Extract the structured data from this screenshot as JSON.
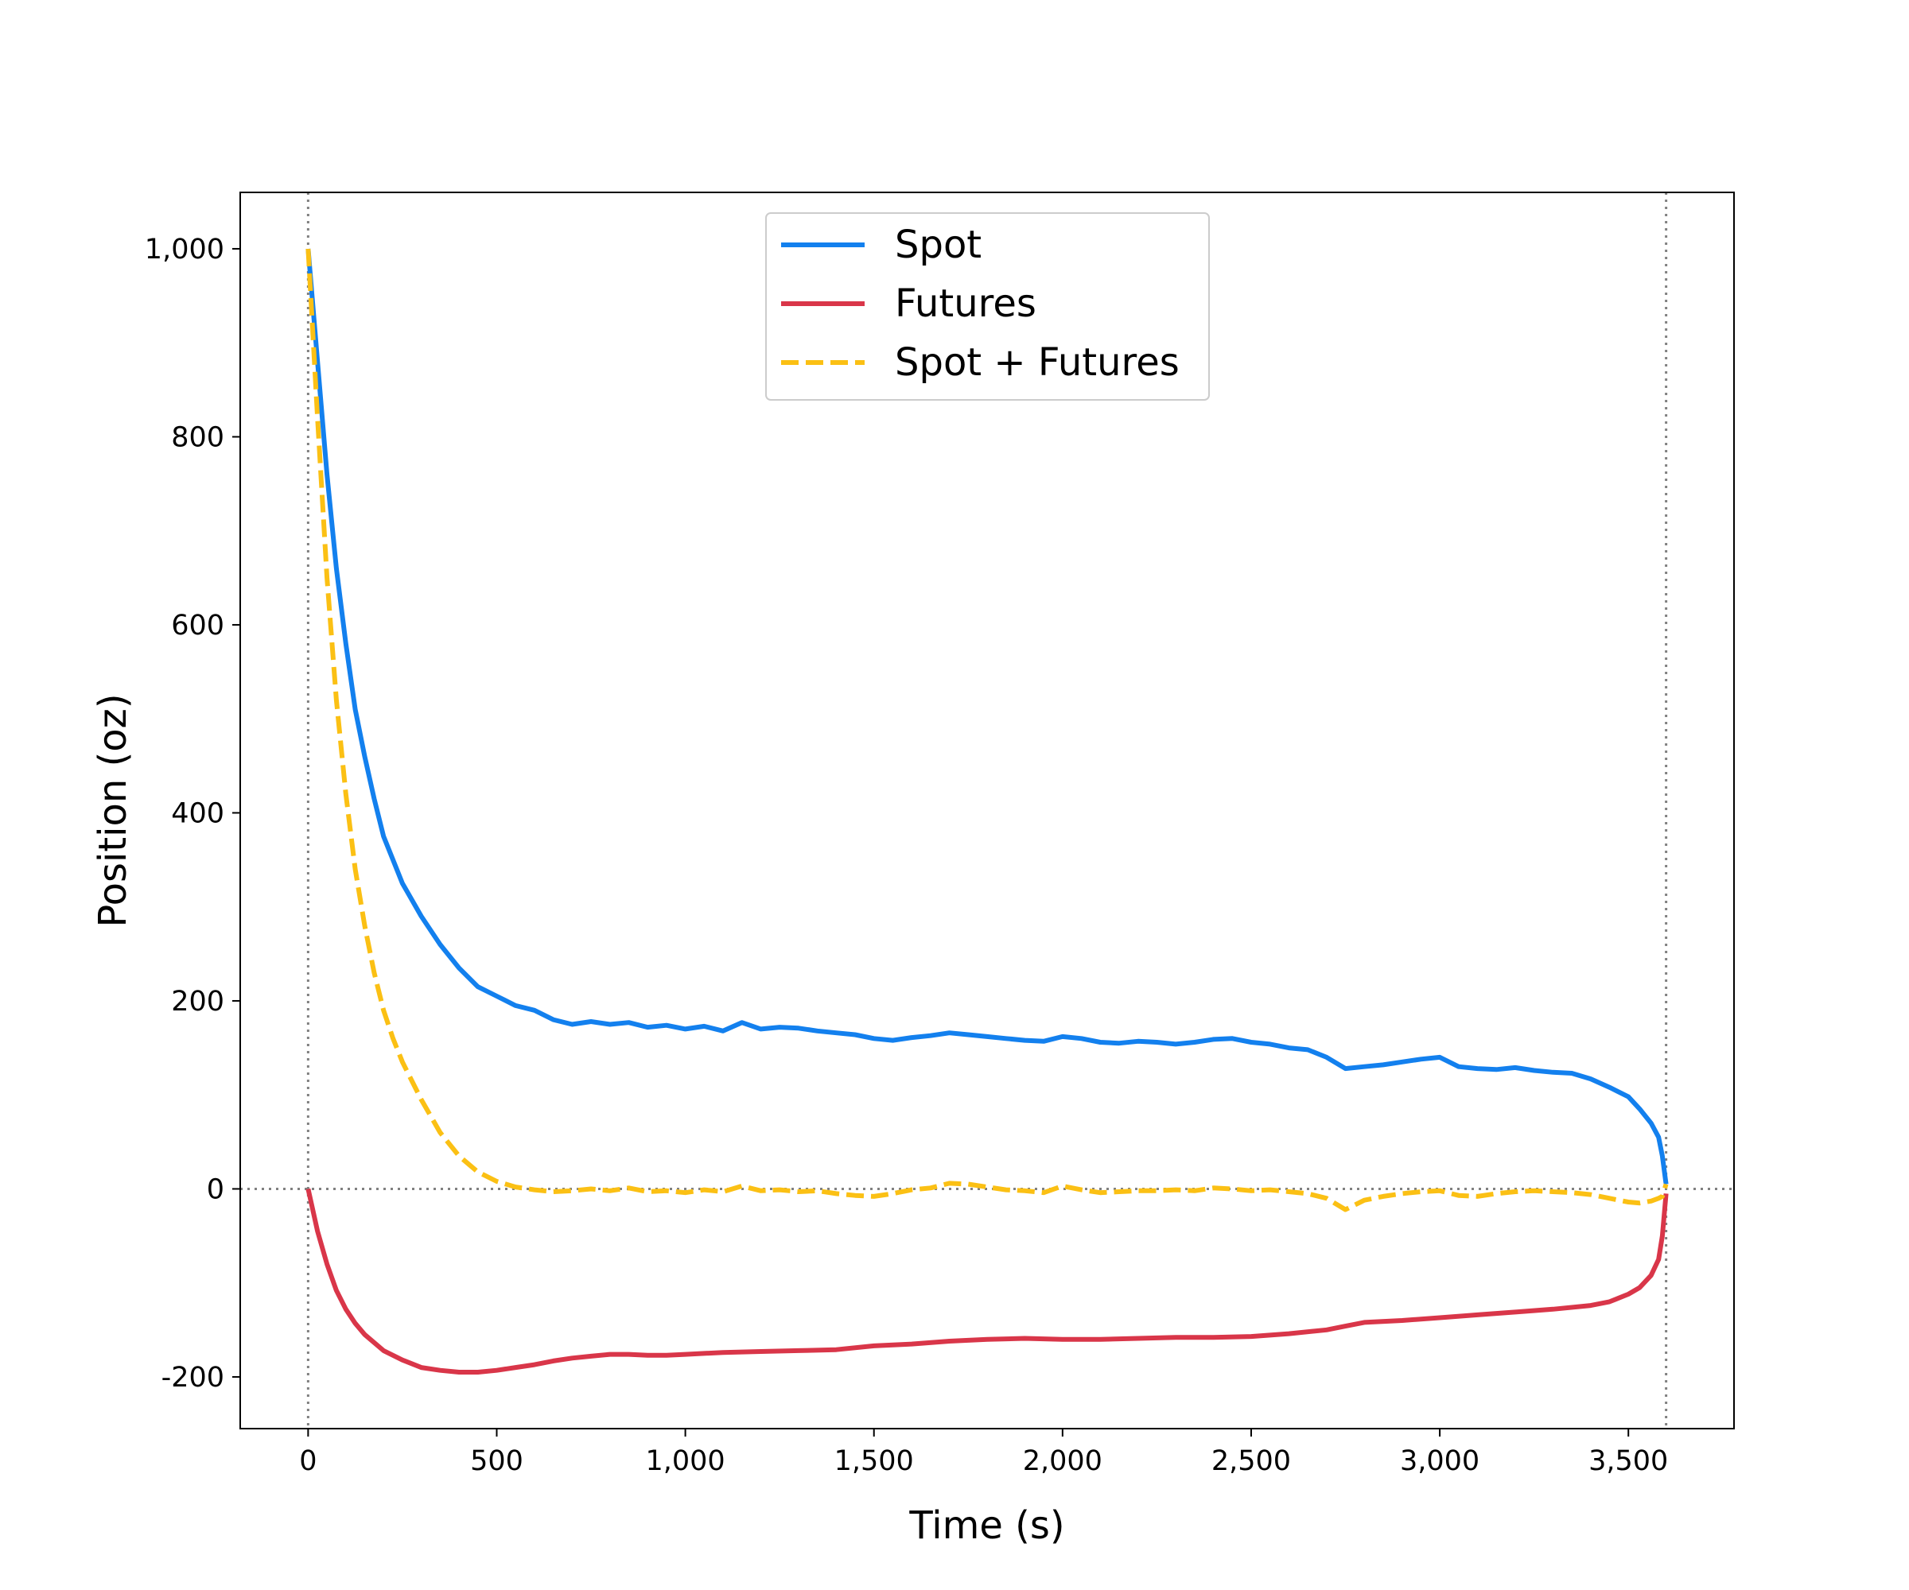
{
  "chart_data": {
    "type": "line",
    "xlabel": "Time (s)",
    "ylabel": "Position (oz)",
    "xlim": [
      -180,
      3780
    ],
    "ylim": [
      -255,
      1060
    ],
    "xticks": [
      {
        "value": 0,
        "label": "0"
      },
      {
        "value": 500,
        "label": "500"
      },
      {
        "value": 1000,
        "label": "1,000"
      },
      {
        "value": 1500,
        "label": "1,500"
      },
      {
        "value": 2000,
        "label": "2,000"
      },
      {
        "value": 2500,
        "label": "2,500"
      },
      {
        "value": 3000,
        "label": "3,000"
      },
      {
        "value": 3500,
        "label": "3,500"
      }
    ],
    "yticks": [
      {
        "value": -200,
        "label": "-200"
      },
      {
        "value": 0,
        "label": "0"
      },
      {
        "value": 200,
        "label": "200"
      },
      {
        "value": 400,
        "label": "400"
      },
      {
        "value": 600,
        "label": "600"
      },
      {
        "value": 800,
        "label": "800"
      },
      {
        "value": 1000,
        "label": "1,000"
      }
    ],
    "grid": false,
    "legend_position": "top-center",
    "reference_lines": {
      "vertical_x": [
        0,
        3600
      ],
      "horizontal_y": [
        0
      ],
      "style": "dotted",
      "color": "#808080"
    },
    "series": [
      {
        "name": "Spot",
        "color": "#1380EE",
        "style": "solid",
        "x": [
          0,
          25,
          50,
          75,
          100,
          125,
          150,
          175,
          200,
          225,
          250,
          300,
          350,
          400,
          450,
          500,
          550,
          600,
          650,
          700,
          750,
          800,
          850,
          900,
          950,
          1000,
          1050,
          1100,
          1150,
          1200,
          1250,
          1300,
          1350,
          1400,
          1450,
          1500,
          1550,
          1600,
          1650,
          1700,
          1750,
          1800,
          1850,
          1900,
          1950,
          2000,
          2050,
          2100,
          2150,
          2200,
          2250,
          2300,
          2350,
          2400,
          2450,
          2500,
          2550,
          2600,
          2650,
          2700,
          2750,
          2800,
          2850,
          2900,
          2950,
          3000,
          3050,
          3100,
          3150,
          3200,
          3250,
          3300,
          3350,
          3400,
          3450,
          3500,
          3530,
          3560,
          3580,
          3590,
          3600
        ],
        "y": [
          1000,
          880,
          760,
          660,
          580,
          510,
          460,
          415,
          375,
          350,
          325,
          290,
          260,
          235,
          215,
          205,
          195,
          190,
          180,
          175,
          178,
          175,
          177,
          172,
          174,
          170,
          173,
          168,
          177,
          170,
          172,
          171,
          168,
          166,
          164,
          160,
          158,
          161,
          163,
          166,
          164,
          162,
          160,
          158,
          157,
          162,
          160,
          156,
          155,
          157,
          156,
          154,
          156,
          159,
          160,
          156,
          154,
          150,
          148,
          140,
          128,
          130,
          132,
          135,
          138,
          140,
          130,
          128,
          127,
          129,
          126,
          124,
          123,
          117,
          108,
          98,
          85,
          70,
          55,
          35,
          5
        ]
      },
      {
        "name": "Futures",
        "color": "#D93649",
        "style": "solid",
        "x": [
          0,
          25,
          50,
          75,
          100,
          125,
          150,
          200,
          250,
          300,
          350,
          400,
          450,
          500,
          550,
          600,
          650,
          700,
          750,
          800,
          850,
          900,
          950,
          1000,
          1100,
          1200,
          1300,
          1400,
          1500,
          1600,
          1700,
          1800,
          1900,
          2000,
          2100,
          2200,
          2300,
          2400,
          2500,
          2600,
          2700,
          2750,
          2800,
          2900,
          3000,
          3100,
          3200,
          3300,
          3400,
          3450,
          3500,
          3530,
          3560,
          3580,
          3590,
          3600
        ],
        "y": [
          0,
          -45,
          -80,
          -108,
          -128,
          -143,
          -155,
          -172,
          -182,
          -190,
          -193,
          -195,
          -195,
          -193,
          -190,
          -187,
          -183,
          -180,
          -178,
          -176,
          -176,
          -177,
          -177,
          -176,
          -174,
          -173,
          -172,
          -171,
          -167,
          -165,
          -162,
          -160,
          -159,
          -160,
          -160,
          -159,
          -158,
          -158,
          -157,
          -154,
          -150,
          -146,
          -142,
          -140,
          -137,
          -134,
          -131,
          -128,
          -124,
          -120,
          -112,
          -105,
          -92,
          -75,
          -50,
          -5
        ]
      },
      {
        "name": "Spot + Futures",
        "color": "#FBC014",
        "style": "dashed",
        "x": [
          0,
          25,
          50,
          75,
          100,
          125,
          150,
          175,
          200,
          225,
          250,
          300,
          350,
          400,
          450,
          500,
          550,
          600,
          650,
          700,
          750,
          800,
          850,
          900,
          950,
          1000,
          1050,
          1100,
          1150,
          1200,
          1250,
          1300,
          1350,
          1400,
          1450,
          1500,
          1550,
          1600,
          1650,
          1700,
          1750,
          1800,
          1850,
          1900,
          1950,
          2000,
          2050,
          2100,
          2150,
          2200,
          2250,
          2300,
          2350,
          2400,
          2450,
          2500,
          2550,
          2600,
          2650,
          2700,
          2750,
          2800,
          2850,
          2900,
          2950,
          3000,
          3050,
          3100,
          3150,
          3200,
          3250,
          3300,
          3350,
          3400,
          3450,
          3500,
          3530,
          3560,
          3580,
          3590,
          3600
        ],
        "y": [
          1000,
          820,
          650,
          520,
          420,
          340,
          280,
          230,
          190,
          160,
          135,
          95,
          60,
          35,
          18,
          8,
          2,
          -1,
          -3,
          -2,
          0,
          -2,
          1,
          -3,
          -2,
          -4,
          -1,
          -3,
          3,
          -2,
          -1,
          -3,
          -2,
          -5,
          -7,
          -8,
          -5,
          -1,
          1,
          6,
          5,
          2,
          -1,
          -2,
          -4,
          3,
          -1,
          -4,
          -3,
          -2,
          -2,
          -1,
          -2,
          1,
          0,
          -2,
          -1,
          -3,
          -5,
          -10,
          -22,
          -12,
          -8,
          -5,
          -3,
          -2,
          -7,
          -8,
          -5,
          -3,
          -2,
          -3,
          -4,
          -6,
          -10,
          -14,
          -15,
          -13,
          -10,
          -8,
          5
        ]
      }
    ]
  }
}
